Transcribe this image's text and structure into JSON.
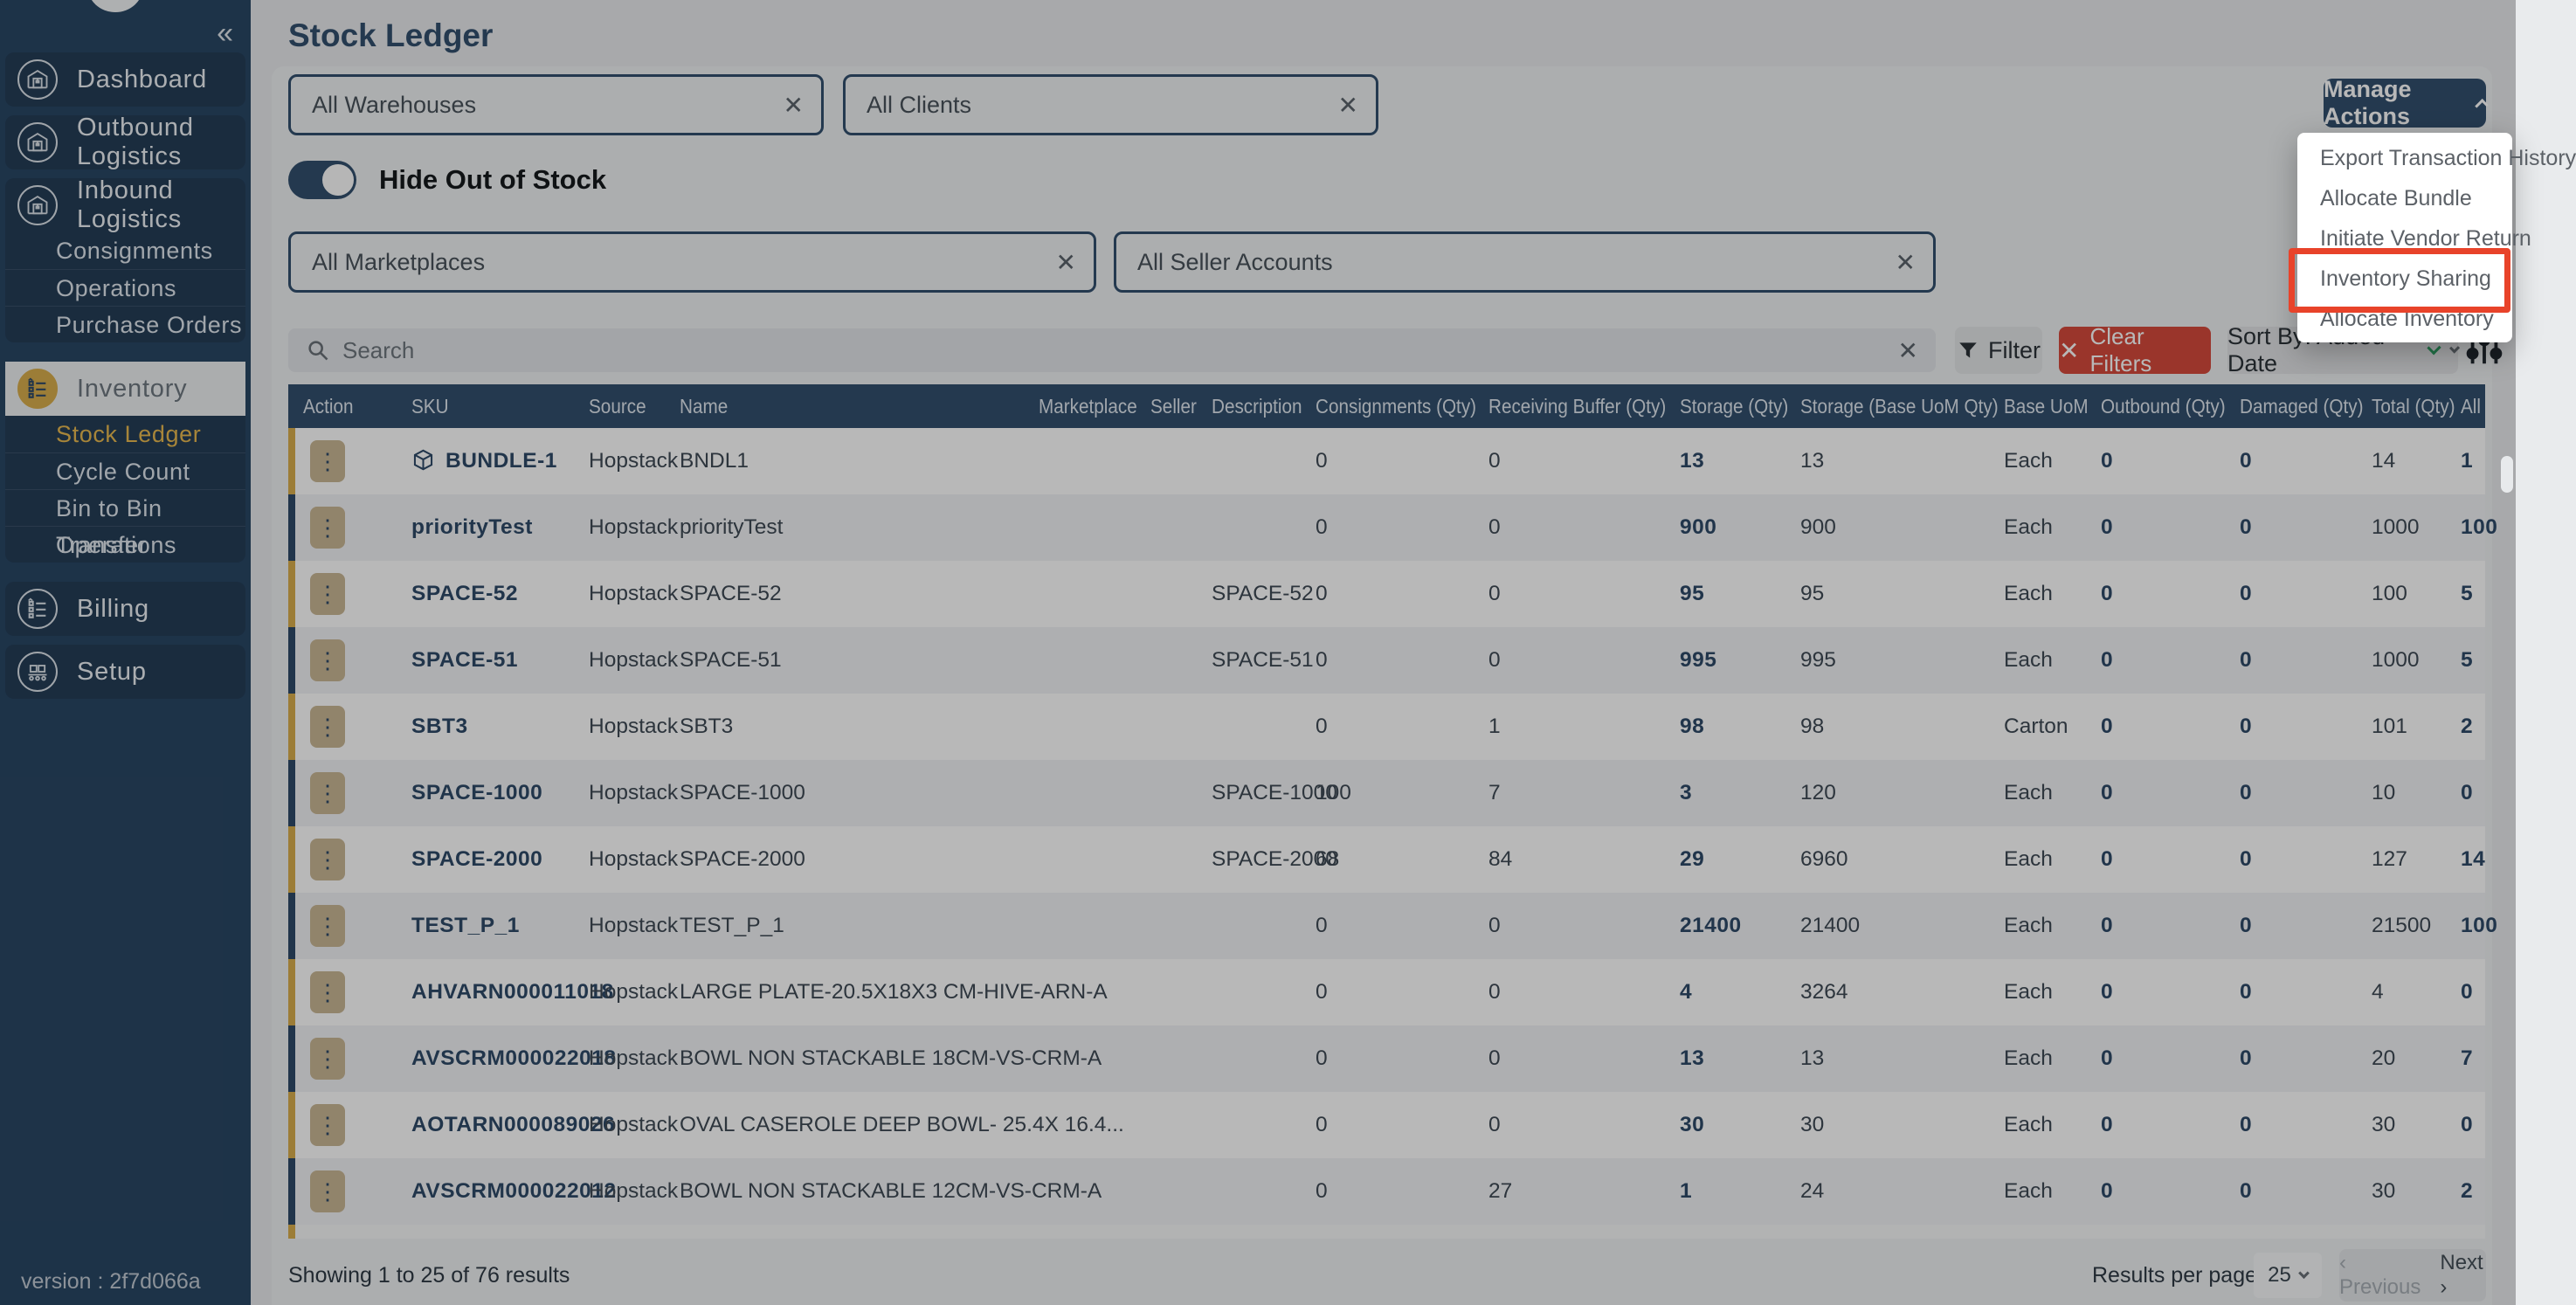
{
  "header": {
    "title": "Stock Ledger"
  },
  "sidebar": {
    "collapse_icon": "«",
    "items": [
      {
        "label": "Dashboard",
        "icon": "warehouse-icon",
        "active": false,
        "children": []
      },
      {
        "label": "Outbound Logistics",
        "icon": "warehouse-icon",
        "active": false,
        "children": []
      },
      {
        "label": "Inbound Logistics",
        "icon": "warehouse-icon",
        "active": false,
        "children": [
          "Consignments",
          "Operations",
          "Purchase Orders"
        ]
      },
      {
        "label": "Inventory",
        "icon": "checklist-icon",
        "active": true,
        "children": [
          "Stock Ledger",
          "Cycle Count",
          "Bin to Bin Transfer",
          "Operations"
        ],
        "active_child": "Stock Ledger"
      },
      {
        "label": "Billing",
        "icon": "checklist-icon",
        "active": false,
        "children": []
      },
      {
        "label": "Setup",
        "icon": "conveyor-icon",
        "active": false,
        "children": []
      }
    ],
    "version": "version : 2f7d066a"
  },
  "filters": {
    "warehouses_value": "All Warehouses",
    "clients_value": "All Clients",
    "toggle_label": "Hide Out of Stock",
    "toggle_on": true,
    "marketplaces_value": "All Marketplaces",
    "seller_accounts_value": "All Seller Accounts",
    "search_placeholder": "Search",
    "filter_button": "Filter",
    "clear_filters_button": "Clear Filters",
    "sort_by_value": "Sort By: Added Date"
  },
  "manage_actions": {
    "button_label": "Manage Actions",
    "menu_items": [
      "Export Transaction History",
      "Allocate Bundle",
      "Initiate Vendor Return",
      "Inventory Sharing",
      "Allocate Inventory"
    ],
    "highlighted_item": "Inventory Sharing",
    "highlight_color": "#e8432a"
  },
  "table": {
    "columns": [
      "Action",
      "SKU",
      "Source",
      "Name",
      "Marketplace",
      "Seller",
      "Description",
      "Consignments (Qty)",
      "Receiving Buffer (Qty)",
      "Storage (Qty)",
      "Storage (Base UoM Qty)",
      "Base UoM",
      "Outbound (Qty)",
      "Damaged (Qty)",
      "Total (Qty)",
      "All"
    ],
    "rows": [
      {
        "bar": "gold",
        "bundle": true,
        "sku": "BUNDLE-1",
        "source": "Hopstack",
        "name": "BNDL1",
        "marketplace": "",
        "seller": "",
        "description": "",
        "consignments": "0",
        "receiving_buffer": "0",
        "storage": "13",
        "storage_base_uom": "13",
        "base_uom": "Each",
        "outbound": "0",
        "damaged": "0",
        "total": "14",
        "allocated": "1"
      },
      {
        "bar": "navy",
        "bundle": false,
        "sku": "priorityTest",
        "source": "Hopstack",
        "name": "priorityTest",
        "marketplace": "",
        "seller": "",
        "description": "",
        "consignments": "0",
        "receiving_buffer": "0",
        "storage": "900",
        "storage_base_uom": "900",
        "base_uom": "Each",
        "outbound": "0",
        "damaged": "0",
        "total": "1000",
        "allocated": "100"
      },
      {
        "bar": "gold",
        "bundle": false,
        "sku": "SPACE-52",
        "source": "Hopstack",
        "name": "SPACE-52",
        "marketplace": "",
        "seller": "",
        "description": "SPACE-52",
        "consignments": "0",
        "receiving_buffer": "0",
        "storage": "95",
        "storage_base_uom": "95",
        "base_uom": "Each",
        "outbound": "0",
        "damaged": "0",
        "total": "100",
        "allocated": "5"
      },
      {
        "bar": "navy",
        "bundle": false,
        "sku": "SPACE-51",
        "source": "Hopstack",
        "name": "SPACE-51",
        "marketplace": "",
        "seller": "",
        "description": "SPACE-51",
        "consignments": "0",
        "receiving_buffer": "0",
        "storage": "995",
        "storage_base_uom": "995",
        "base_uom": "Each",
        "outbound": "0",
        "damaged": "0",
        "total": "1000",
        "allocated": "5"
      },
      {
        "bar": "gold",
        "bundle": false,
        "sku": "SBT3",
        "source": "Hopstack",
        "name": "SBT3",
        "marketplace": "",
        "seller": "",
        "description": "",
        "consignments": "0",
        "receiving_buffer": "1",
        "storage": "98",
        "storage_base_uom": "98",
        "base_uom": "Carton",
        "outbound": "0",
        "damaged": "0",
        "total": "101",
        "allocated": "2"
      },
      {
        "bar": "navy",
        "bundle": false,
        "sku": "SPACE-1000",
        "source": "Hopstack",
        "name": "SPACE-1000",
        "marketplace": "",
        "seller": "",
        "description": "SPACE-1000",
        "consignments": "100",
        "receiving_buffer": "7",
        "storage": "3",
        "storage_base_uom": "120",
        "base_uom": "Each",
        "outbound": "0",
        "damaged": "0",
        "total": "10",
        "allocated": "0"
      },
      {
        "bar": "gold",
        "bundle": false,
        "sku": "SPACE-2000",
        "source": "Hopstack",
        "name": "SPACE-2000",
        "marketplace": "",
        "seller": "",
        "description": "SPACE-2000",
        "consignments": "68",
        "receiving_buffer": "84",
        "storage": "29",
        "storage_base_uom": "6960",
        "base_uom": "Each",
        "outbound": "0",
        "damaged": "0",
        "total": "127",
        "allocated": "14"
      },
      {
        "bar": "navy",
        "bundle": false,
        "sku": "TEST_P_1",
        "source": "Hopstack",
        "name": "TEST_P_1",
        "marketplace": "",
        "seller": "",
        "description": "",
        "consignments": "0",
        "receiving_buffer": "0",
        "storage": "21400",
        "storage_base_uom": "21400",
        "base_uom": "Each",
        "outbound": "0",
        "damaged": "0",
        "total": "21500",
        "allocated": "100"
      },
      {
        "bar": "gold",
        "bundle": false,
        "sku": "AHVARN000011018",
        "source": "Hopstack",
        "name": "LARGE PLATE-20.5X18X3 CM-HIVE-ARN-A",
        "marketplace": "",
        "seller": "",
        "description": "",
        "consignments": "0",
        "receiving_buffer": "0",
        "storage": "4",
        "storage_base_uom": "3264",
        "base_uom": "Each",
        "outbound": "0",
        "damaged": "0",
        "total": "4",
        "allocated": "0"
      },
      {
        "bar": "navy",
        "bundle": false,
        "sku": "AVSCRM000022018",
        "source": "Hopstack",
        "name": "BOWL NON STACKABLE 18CM-VS-CRM-A",
        "marketplace": "",
        "seller": "",
        "description": "",
        "consignments": "0",
        "receiving_buffer": "0",
        "storage": "13",
        "storage_base_uom": "13",
        "base_uom": "Each",
        "outbound": "0",
        "damaged": "0",
        "total": "20",
        "allocated": "7"
      },
      {
        "bar": "gold",
        "bundle": false,
        "sku": "AOTARN000089026",
        "source": "Hopstack",
        "name": "OVAL CASEROLE DEEP BOWL- 25.4X 16.4...",
        "marketplace": "",
        "seller": "",
        "description": "",
        "consignments": "0",
        "receiving_buffer": "0",
        "storage": "30",
        "storage_base_uom": "30",
        "base_uom": "Each",
        "outbound": "0",
        "damaged": "0",
        "total": "30",
        "allocated": "0"
      },
      {
        "bar": "navy",
        "bundle": false,
        "sku": "AVSCRM000022012",
        "source": "Hopstack",
        "name": "BOWL NON STACKABLE 12CM-VS-CRM-A",
        "marketplace": "",
        "seller": "",
        "description": "",
        "consignments": "0",
        "receiving_buffer": "27",
        "storage": "1",
        "storage_base_uom": "24",
        "base_uom": "Each",
        "outbound": "0",
        "damaged": "0",
        "total": "30",
        "allocated": "2"
      }
    ]
  },
  "footer": {
    "showing": "Showing 1 to 25 of 76 results",
    "results_per_page_label": "Results per page",
    "results_per_page_value": "25",
    "previous_label": "Previous",
    "next_label": "Next"
  }
}
